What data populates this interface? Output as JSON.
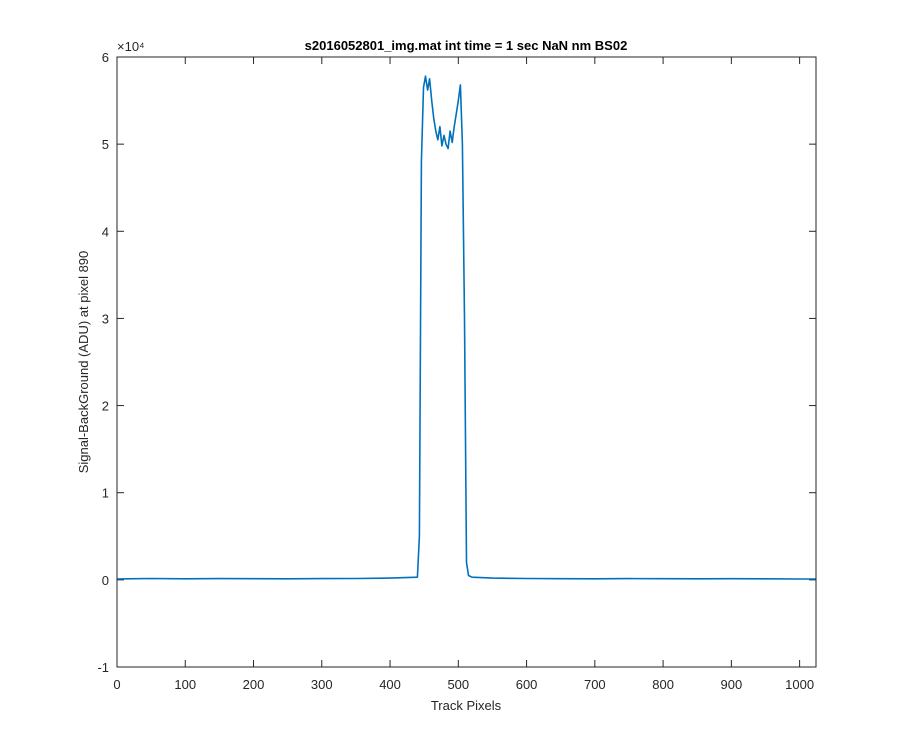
{
  "chart_data": {
    "type": "line",
    "title": "s2016052801_img.mat int time = 1 sec  NaN nm BS02",
    "xlabel": "Track Pixels",
    "ylabel": "Signal-BackGround (ADU) at pixel 890",
    "xlim": [
      0,
      1024
    ],
    "ylim": [
      -10000,
      60000
    ],
    "xticks": [
      0,
      100,
      200,
      300,
      400,
      500,
      600,
      700,
      800,
      900,
      1000
    ],
    "yticks_display": [
      -1,
      0,
      1,
      2,
      3,
      4,
      5,
      6
    ],
    "y_exponent_label": "×10⁴",
    "line_color": "#0072BD",
    "grid": false,
    "series": [
      {
        "x": [
          0,
          50,
          100,
          150,
          200,
          250,
          300,
          350,
          400,
          440,
          443,
          446,
          449,
          452,
          455,
          458,
          461,
          464,
          467,
          470,
          473,
          476,
          479,
          482,
          485,
          488,
          491,
          494,
          497,
          500,
          503,
          506,
          509,
          512,
          515,
          520,
          550,
          600,
          650,
          700,
          750,
          800,
          850,
          900,
          950,
          1000,
          1024
        ],
        "y": [
          100,
          150,
          120,
          140,
          130,
          120,
          140,
          150,
          200,
          300,
          5000,
          48000,
          56500,
          57800,
          56200,
          57500,
          55000,
          53000,
          51500,
          50500,
          52000,
          49800,
          51000,
          50000,
          49500,
          51500,
          50200,
          52000,
          53500,
          55000,
          56800,
          50000,
          30000,
          2000,
          500,
          300,
          200,
          150,
          130,
          120,
          140,
          130,
          120,
          130,
          120,
          100,
          100
        ]
      }
    ]
  }
}
